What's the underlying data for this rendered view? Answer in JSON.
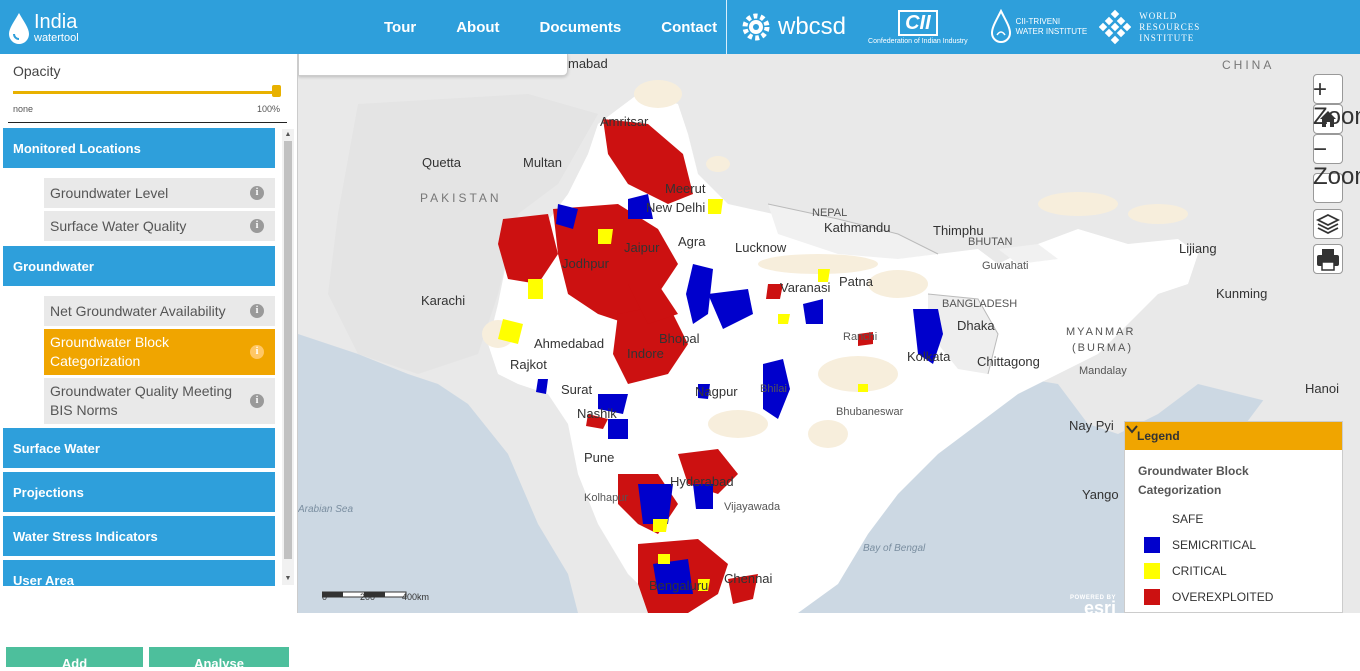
{
  "header": {
    "logo_line1": "India",
    "logo_line2": "watertool",
    "nav": [
      "Tour",
      "About",
      "Documents",
      "Contact"
    ],
    "partners": {
      "wbcsd": "wbcsd",
      "cii": "CII",
      "cii_sub": "Confederation of Indian Industry",
      "ct_line1": "CII-TRIVENI",
      "ct_line2": "WATER INSTITUTE",
      "wri_line1": "WORLD",
      "wri_line2": "RESOURCES",
      "wri_line3": "INSTITUTE"
    }
  },
  "sidebar": {
    "opacity_label": "Opacity",
    "opacity_value": 1.0,
    "opacity_min": "none",
    "opacity_max": "100%",
    "categories": [
      {
        "label": "Monitored Locations",
        "items": [
          {
            "label": "Groundwater Level",
            "active": false
          },
          {
            "label": "Surface Water Quality",
            "active": false
          }
        ]
      },
      {
        "label": "Groundwater",
        "items": [
          {
            "label": "Net Groundwater Availability",
            "active": false
          },
          {
            "label": "Groundwater Block Categorization",
            "active": true
          },
          {
            "label": "Groundwater Quality Meeting BIS Norms",
            "active": false
          }
        ]
      },
      {
        "label": "Surface Water",
        "items": []
      },
      {
        "label": "Projections",
        "items": []
      },
      {
        "label": "Water Stress Indicators",
        "items": []
      },
      {
        "label": "User Area",
        "items": []
      }
    ],
    "info_glyph": "i",
    "buttons": {
      "add": "Add",
      "analyse": "Analyse"
    }
  },
  "map": {
    "labels": {
      "china": "CHINA",
      "pakistan": "PAKISTAN",
      "nepal": "NEPAL",
      "bhutan": "BHUTAN",
      "bangladesh": "BANGLADESH",
      "myanmar1": "MYANMAR",
      "myanmar2": "(BURMA)",
      "abad": "mabad",
      "amritsar": "Amritsar",
      "quetta": "Quetta",
      "multan": "Multan",
      "meerut": "Meerut",
      "new_delhi": "New Delhi",
      "kathmandu": "Kathmandu",
      "thimphu": "Thimphu",
      "jaipur": "Jaipur",
      "agra": "Agra",
      "lucknow": "Lucknow",
      "guwahati": "Guwahati",
      "lijiang": "Lijiang",
      "karachi": "Karachi",
      "jodhpur": "Jodhpur",
      "varanasi": "Varanasi",
      "patna": "Patna",
      "kunming": "Kunming",
      "dhaka": "Dhaka",
      "ahmedabad": "Ahmedabad",
      "bhopal": "Bhopal",
      "ranchi": "Ranchi",
      "indore": "Indore",
      "kolkata": "Kolkata",
      "chittagong": "Chittagong",
      "rajkot": "Rajkot",
      "mandalay": "Mandalay",
      "surat": "Surat",
      "nagpur": "Nagpur",
      "bhilai": "Bhilai",
      "hanoi": "Hanoi",
      "nashik": "Nashik",
      "bhubaneswar": "Bhubaneswar",
      "naypyi": "Nay Pyi",
      "pune": "Pune",
      "hyderabad": "Hyderabad",
      "yangon": "Yango",
      "kolhapur": "Kolhapur",
      "vijayawada": "Vijayawada",
      "arabian_sea": "Arabian Sea",
      "bay_of_bengal": "Bay of Bengal",
      "bengaluru": "Bengaluru",
      "chennai": "Chennai"
    },
    "controls": {
      "zoom_in": "+ Zoom In",
      "zoom_out": "− Zoom Out"
    },
    "scale": {
      "t0": "0",
      "t1": "200",
      "t2": "400km"
    },
    "esri": {
      "powered": "POWERED BY",
      "name": "esri"
    }
  },
  "legend": {
    "header": "Legend",
    "title": "Groundwater Block Categorization",
    "items": [
      {
        "label": "SAFE",
        "color": "#ffffff"
      },
      {
        "label": "SEMICRITICAL",
        "color": "#0000cc"
      },
      {
        "label": "CRITICAL",
        "color": "#ffff00"
      },
      {
        "label": "OVEREXPLOITED",
        "color": "#cc1111"
      }
    ]
  },
  "colors": {
    "header_bg": "#2e9fdb",
    "category_bg": "#2e9fdb",
    "active_item_bg": "#f0a500",
    "button_bg": "#4dbf9c",
    "overexploited": "#cc1111",
    "semicritical": "#0000cc",
    "critical": "#ffff00",
    "safe": "#ffffff"
  }
}
